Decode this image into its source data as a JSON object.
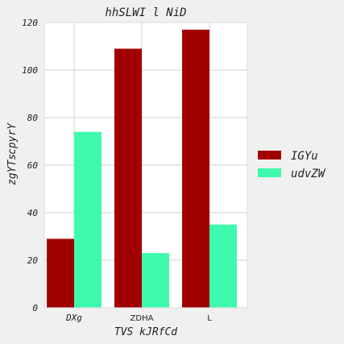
{
  "chart_data": {
    "type": "bar",
    "title": "hhSLWI l NiD",
    "xlabel": "TVS kJRfCd",
    "ylabel_lines": [
      "cpyrY",
      "zgYTs"
    ],
    "categories": [
      "DXg",
      "ZDHA",
      "L"
    ],
    "category_italic": [
      true,
      false,
      false
    ],
    "series": [
      {
        "name": "IGYu",
        "color": "#a10000",
        "values": [
          29,
          109,
          117
        ]
      },
      {
        "name": "udvZW",
        "color": "#3dfaad",
        "values": [
          74,
          23,
          35
        ]
      }
    ],
    "ylim": [
      0,
      120
    ],
    "yticks": [
      0,
      20,
      40,
      60,
      80,
      100,
      120
    ],
    "grid": true,
    "legend_position": "right"
  }
}
